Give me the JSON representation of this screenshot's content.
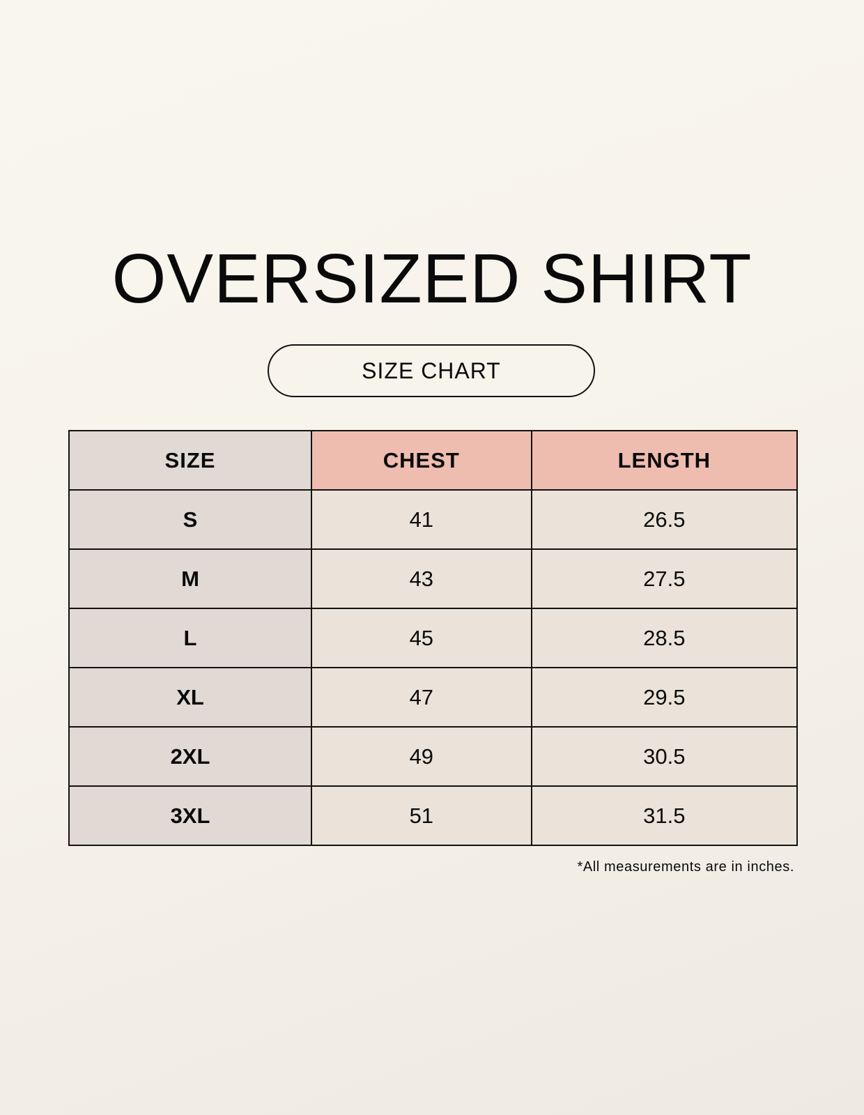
{
  "title": "OVERSIZED SHIRT",
  "subtitle": "SIZE CHART",
  "table": {
    "headers": [
      "SIZE",
      "CHEST",
      "LENGTH"
    ],
    "rows": [
      [
        "S",
        "41",
        "26.5"
      ],
      [
        "M",
        "43",
        "27.5"
      ],
      [
        "L",
        "45",
        "28.5"
      ],
      [
        "XL",
        "47",
        "29.5"
      ],
      [
        "2XL",
        "49",
        "30.5"
      ],
      [
        "3XL",
        "51",
        "31.5"
      ]
    ]
  },
  "footnote": "*All measurements are in inches.",
  "colors": {
    "size_column": "#e1d9d4",
    "header_accent": "#eebdb0",
    "cell": "#ebe3d9",
    "background": "#f8f5ee"
  }
}
